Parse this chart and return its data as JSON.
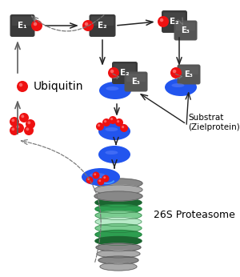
{
  "bg_color": "#ffffff",
  "box_dark": "#3a3a3a",
  "box_mid": "#555555",
  "red": "#ee1111",
  "red_hi": "#ff8888",
  "blue": "#2255ee",
  "blue_hi": "#6688ff",
  "green_dark": "#1a6630",
  "green_mid": "#2d9e50",
  "green_light": "#7acc90",
  "green_vlight": "#b8eac8",
  "gray_dark": "#606060",
  "gray_mid": "#888888",
  "gray_light": "#aaaaaa",
  "gray_vlight": "#cccccc",
  "arrow_color": "#222222",
  "arrow_dashed": "#777777",
  "label_26S": "26S Proteasome",
  "label_ubiquitin": "Ubiquitin",
  "label_substrat": "Substrat\n(Zielprotein)"
}
